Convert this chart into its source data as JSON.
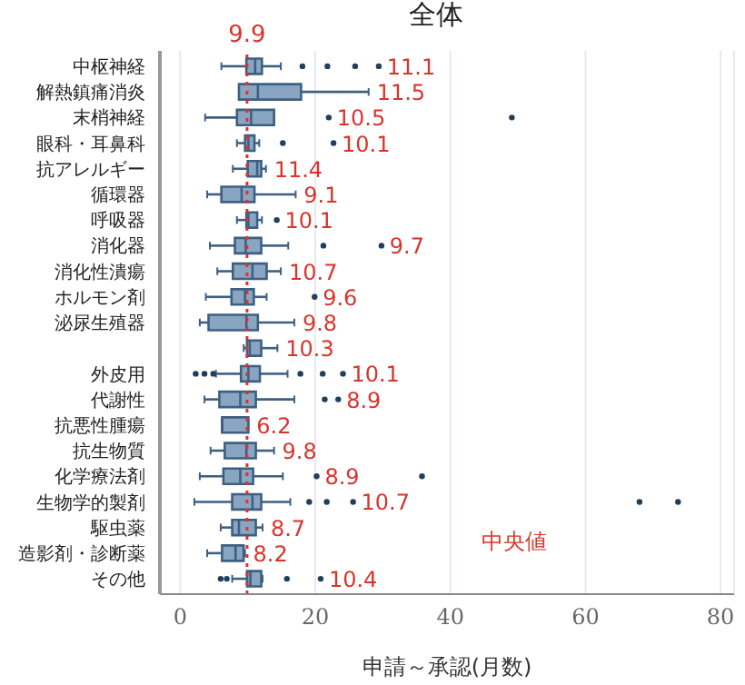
{
  "chart_data": {
    "type": "box",
    "title": "全体",
    "xlabel": "申請～承認(月数)",
    "orientation": "horizontal",
    "color": "#8aa5c2",
    "categories": [
      "中枢神経",
      "解熱鎮痛消炎",
      "末梢神経",
      "眼科・耳鼻科",
      "抗アレルギー",
      "循環器",
      "呼吸器",
      "消化器",
      "消化性潰瘍",
      "ホルモン剤",
      "泌尿生殖器",
      null,
      "外皮用",
      "代謝性",
      "抗悪性腫瘍",
      "抗生物質",
      "化学療法剤",
      "生物学的製剤",
      "駆虫薬",
      "造影剤・診断薬",
      "その他"
    ],
    "boxes": [
      {
        "low": 6.1,
        "q1": 9.8,
        "median": 11.1,
        "q3": 12.1,
        "high": 14.9,
        "outliers": [
          18.1,
          21.8,
          25.9,
          29.4
        ]
      },
      {
        "low": 8.7,
        "q1": 8.7,
        "median": 11.5,
        "q3": 17.9,
        "high": 27.9
      },
      {
        "low": 3.7,
        "q1": 8.4,
        "median": 10.5,
        "q3": 13.9,
        "high": 13.9,
        "outliers": [
          22.0,
          49.1
        ]
      },
      {
        "low": 8.4,
        "q1": 9.6,
        "median": 10.1,
        "q3": 11.0,
        "high": 11.7,
        "outliers": [
          15.2,
          22.7
        ]
      },
      {
        "low": 7.8,
        "q1": 10.0,
        "median": 11.4,
        "q3": 12.0,
        "high": 12.7
      },
      {
        "low": 4.0,
        "q1": 6.1,
        "median": 9.1,
        "q3": 11.0,
        "high": 17.1
      },
      {
        "low": 8.4,
        "q1": 9.8,
        "median": 10.1,
        "q3": 11.4,
        "high": 12.1,
        "outliers": [
          14.3
        ]
      },
      {
        "low": 4.4,
        "q1": 8.1,
        "median": 9.7,
        "q3": 12.0,
        "high": 16.0,
        "outliers": [
          21.2,
          29.8
        ]
      },
      {
        "low": 5.5,
        "q1": 7.8,
        "median": 10.7,
        "q3": 12.8,
        "high": 14.9
      },
      {
        "low": 3.8,
        "q1": 7.6,
        "median": 9.6,
        "q3": 10.9,
        "high": 12.8,
        "outliers": [
          19.9
        ]
      },
      {
        "low": 2.9,
        "q1": 4.2,
        "median": 9.8,
        "q3": 11.5,
        "high": 16.9
      },
      {
        "low": 9.4,
        "q1": 9.9,
        "median": 10.3,
        "q3": 12.0,
        "high": 14.4
      },
      {
        "low": 5.3,
        "q1": 9.0,
        "median": 10.1,
        "q3": 11.8,
        "high": 15.9,
        "outliers": [
          2.3,
          3.6,
          4.9,
          17.8,
          21.1,
          24.1
        ]
      },
      {
        "low": 3.6,
        "q1": 5.8,
        "median": 8.9,
        "q3": 11.2,
        "high": 16.9,
        "outliers": [
          21.4,
          23.4
        ]
      },
      {
        "low": 6.2,
        "q1": 6.2,
        "median": 6.2,
        "q3": 10.1,
        "high": 10.1
      },
      {
        "low": 4.5,
        "q1": 6.6,
        "median": 9.8,
        "q3": 11.2,
        "high": 13.9
      },
      {
        "low": 2.9,
        "q1": 6.4,
        "median": 8.9,
        "q3": 10.8,
        "high": 15.2,
        "outliers": [
          20.2,
          35.8
        ]
      },
      {
        "low": 2.1,
        "q1": 7.7,
        "median": 10.7,
        "q3": 12.0,
        "high": 16.3,
        "outliers": [
          19.1,
          21.7,
          25.6,
          68.0,
          73.7
        ]
      },
      {
        "low": 6.0,
        "q1": 7.7,
        "median": 8.7,
        "q3": 11.2,
        "high": 12.2
      },
      {
        "low": 4.0,
        "q1": 6.2,
        "median": 8.2,
        "q3": 9.4,
        "high": 9.6
      },
      {
        "low": 7.7,
        "q1": 9.9,
        "median": 10.4,
        "q3": 12.0,
        "high": 12.2,
        "outliers": [
          6.0,
          6.9,
          15.8,
          20.8
        ]
      }
    ],
    "value_labels": [
      "11.1",
      "11.5",
      "10.5",
      "10.1",
      "11.4",
      "9.1",
      "10.1",
      "9.7",
      "10.7",
      "9.6",
      "9.8",
      "10.3",
      "10.1",
      "8.9",
      "6.2",
      "9.8",
      "8.9",
      "10.7",
      "8.7",
      "8.2",
      "10.4"
    ],
    "xlim": [
      -3,
      82
    ],
    "xticks": [
      0,
      20,
      40,
      60,
      80
    ],
    "grid": "x",
    "ref_lines": [
      {
        "axis": "x",
        "value": 9.9,
        "label": "9.9",
        "color": "#d9342b",
        "line_style": "dotted"
      }
    ],
    "annotations": [
      "中央値"
    ]
  }
}
